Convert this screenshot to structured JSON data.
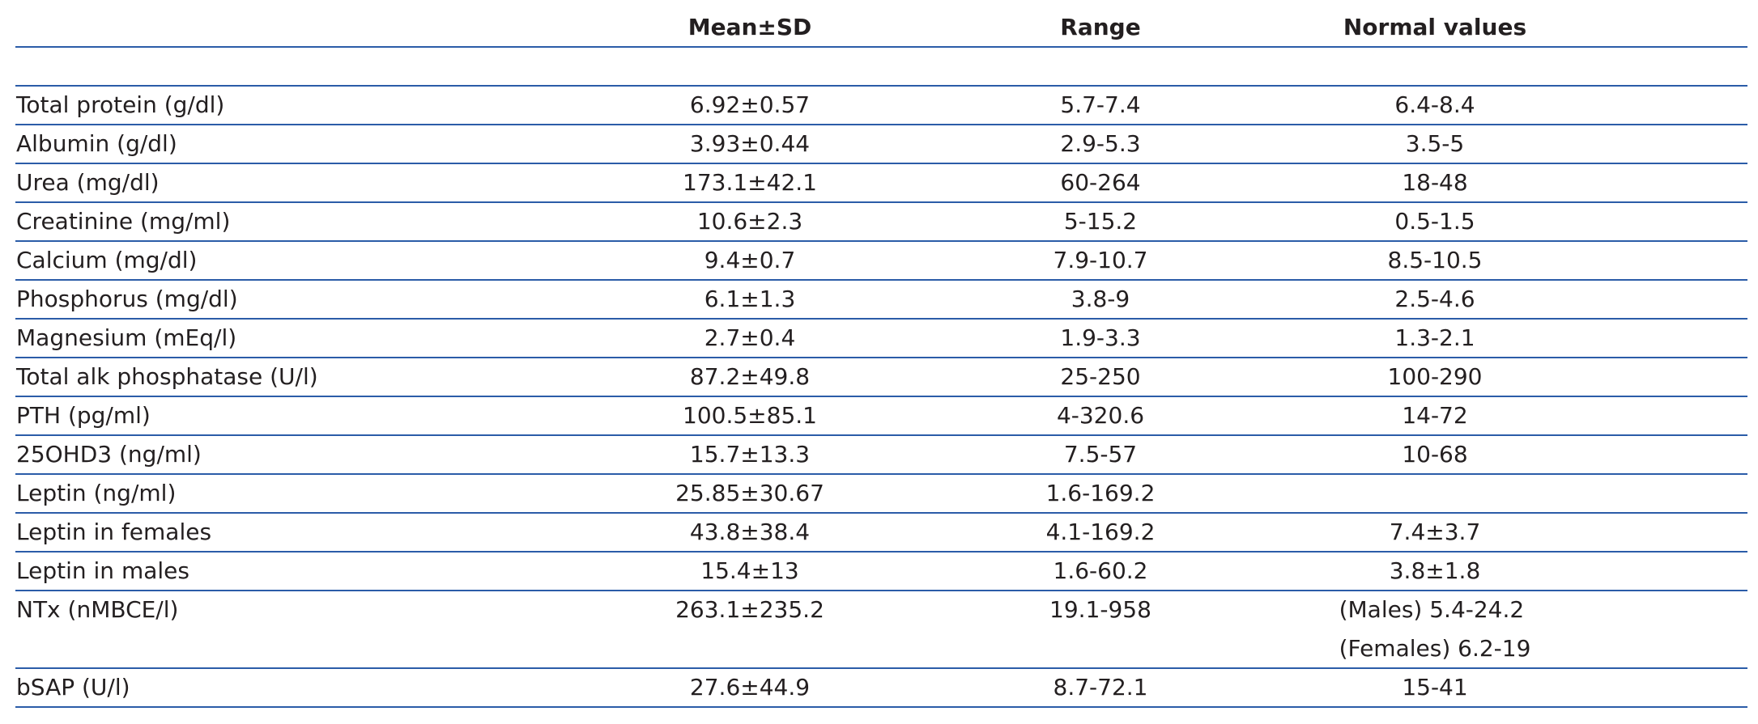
{
  "table": {
    "columns": [
      "Mean±SD",
      "Range",
      "Normal values"
    ],
    "rows": [
      [
        "Total protein (g/dl)",
        "6.92±0.57",
        "5.7-7.4",
        "6.4-8.4"
      ],
      [
        "Albumin (g/dl)",
        "3.93±0.44",
        "2.9-5.3",
        "3.5-5"
      ],
      [
        "Urea (mg/dl)",
        "173.1±42.1",
        "60-264",
        "18-48"
      ],
      [
        "Creatinine (mg/ml)",
        "10.6±2.3",
        "5-15.2",
        "0.5-1.5"
      ],
      [
        "Calcium (mg/dl)",
        "9.4±0.7",
        "7.9-10.7",
        "8.5-10.5"
      ],
      [
        "Phosphorus (mg/dl)",
        "6.1±1.3",
        "3.8-9",
        "2.5-4.6"
      ],
      [
        "Magnesium (mEq/l)",
        "2.7±0.4",
        "1.9-3.3",
        "1.3-2.1"
      ],
      [
        "Total alk phosphatase (U/l)",
        "87.2±49.8",
        "25-250",
        "100-290"
      ],
      [
        "PTH (pg/ml)",
        "100.5±85.1",
        "4-320.6",
        "14-72"
      ],
      [
        "25OHD3 (ng/ml)",
        "15.7±13.3",
        "7.5-57",
        "10-68"
      ],
      [
        "Leptin (ng/ml)",
        "25.85±30.67",
        "1.6-169.2"
      ],
      [
        "Leptin in females",
        "43.8±38.4",
        "4.1-169.2",
        "7.4±3.7"
      ],
      [
        "Leptin in males",
        "15.4±13",
        "1.6-60.2",
        "3.8±1.8"
      ],
      [
        "NTx (nMBCE/l)",
        "263.1±235.2",
        "19.1-958",
        [
          "(Males) 5.4-24.2",
          "(Females) 6.2-19"
        ]
      ],
      [
        "bSAP (U/l)",
        "27.6±44.9",
        "8.7-72.1",
        "15-41"
      ]
    ]
  }
}
